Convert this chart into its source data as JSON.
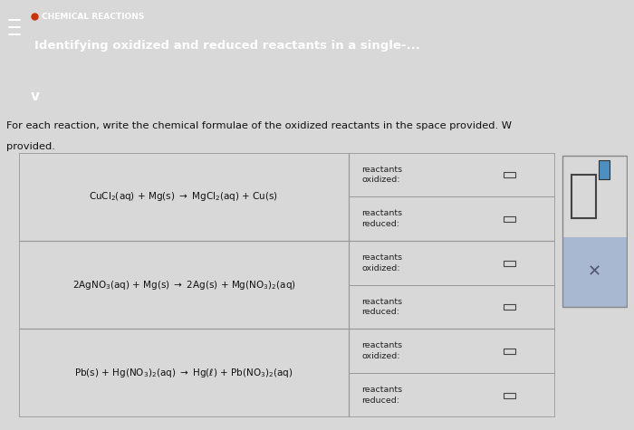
{
  "header_bg": "#1e3a8a",
  "header_text_color": "#ffffff",
  "header_subtitle": "Identifying oxidized and reduced reactants in a single-...",
  "header_topic": "CHEMICAL REACTIONS",
  "header_dot_color": "#cc3300",
  "chevron_bg": "#4a90c4",
  "description_line1": "For each reaction, write the chemical formulae of the oxidized reactants in the space provided. W",
  "description_line2": "provided.",
  "bg_color": "#d8d8d8",
  "table_bg": "#f0f0f0",
  "table_border": "#999999",
  "equations": [
    "CuCl$_{2}$(aq) + Mg(s) $\\rightarrow$ MgCl$_{2}$(aq) + Cu(s)",
    "2AgNO$_{3}$(aq) + Mg(s) $\\rightarrow$ 2Ag(s) + Mg$(\\mathrm{NO_3})_2$(aq)",
    "Pb(s) + Hg$(\\mathrm{NO_3})_2$(aq) $\\rightarrow$ Hg($\\ell$) + Pb$(\\mathrm{NO_3})_2$(aq)"
  ],
  "right_panel_bg": "#c8d8e8",
  "right_panel_lower_bg": "#a8b8d0",
  "text_color": "#111111",
  "label_color": "#222222",
  "checkbox_color": "#444444"
}
